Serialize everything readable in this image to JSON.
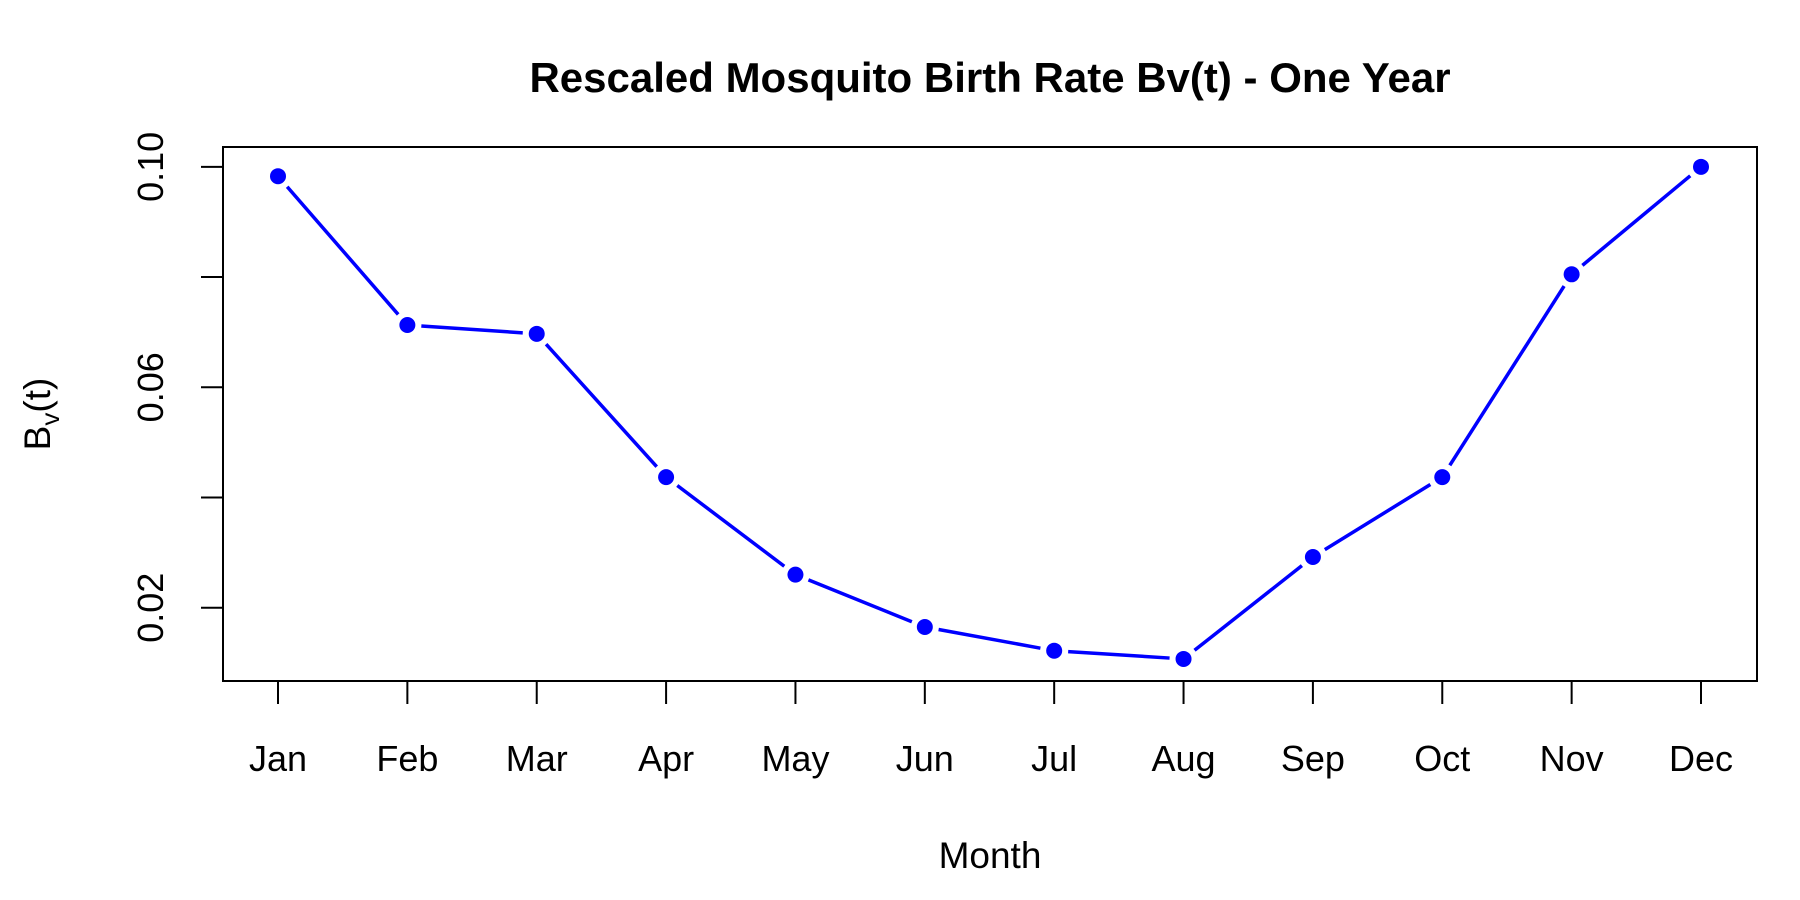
{
  "chart_data": {
    "type": "line",
    "title": "Rescaled Mosquito Birth Rate Bv(t) - One Year",
    "xlabel": "Month",
    "ylabel": {
      "base": "B",
      "subscript": "v",
      "suffix": "(t)"
    },
    "categories": [
      "Jan",
      "Feb",
      "Mar",
      "Apr",
      "May",
      "Jun",
      "Jul",
      "Aug",
      "Sep",
      "Oct",
      "Nov",
      "Dec"
    ],
    "series": [
      {
        "name": "Bv(t)",
        "values": [
          0.0983,
          0.0713,
          0.0697,
          0.0437,
          0.026,
          0.0165,
          0.0122,
          0.0107,
          0.0292,
          0.0437,
          0.0805,
          0.1
        ],
        "color": "#0000ff"
      }
    ],
    "ylim": [
      0.0067,
      0.1036
    ],
    "yticks": [
      0.02,
      0.04,
      0.06,
      0.08,
      0.1
    ],
    "yticklabels": [
      "0.02",
      "",
      "0.06",
      "",
      "0.10"
    ],
    "line_style": "b",
    "grid": false
  }
}
